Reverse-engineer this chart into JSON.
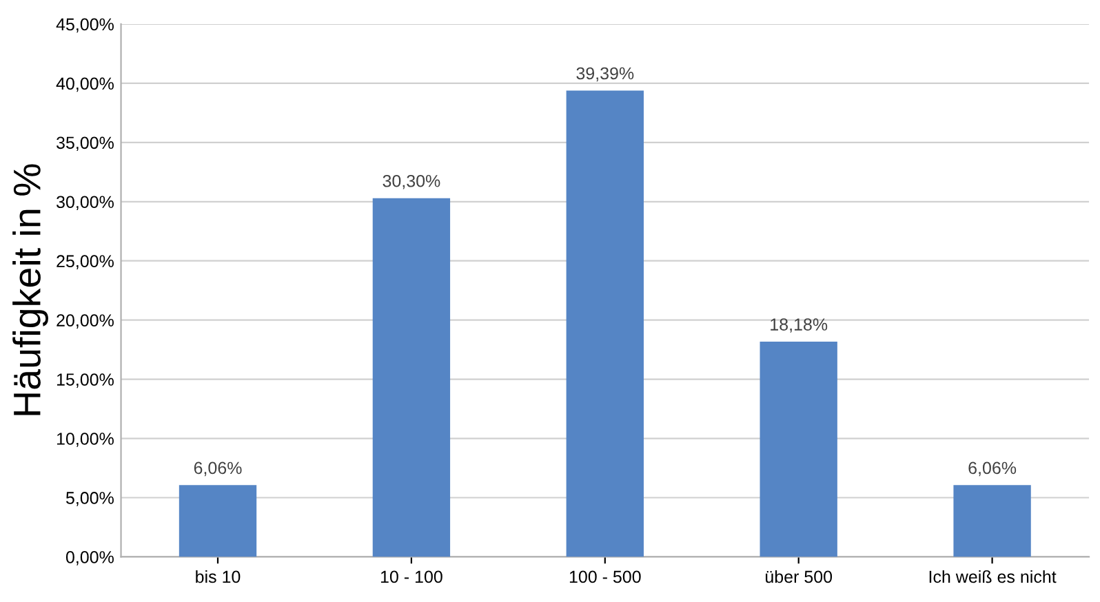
{
  "chart_data": {
    "type": "bar",
    "ylabel": "Häufigkeit in %",
    "categories": [
      "bis 10",
      "10 - 100",
      "100 - 500",
      "über 500",
      "Ich weiß es nicht"
    ],
    "values": [
      6.06,
      30.3,
      39.39,
      18.18,
      6.06
    ],
    "value_labels": [
      "6,06%",
      "30,30%",
      "39,39%",
      "18,18%",
      "6,06%"
    ],
    "color": "#5585c5",
    "ylim": [
      0,
      45
    ],
    "yticks": [
      {
        "value": 0,
        "label": "0,00%"
      },
      {
        "value": 5,
        "label": "5,00%"
      },
      {
        "value": 10,
        "label": "10,00%"
      },
      {
        "value": 15,
        "label": "15,00%"
      },
      {
        "value": 20,
        "label": "20,00%"
      },
      {
        "value": 25,
        "label": "25,00%"
      },
      {
        "value": 30,
        "label": "30,00%"
      },
      {
        "value": 35,
        "label": "35,00%"
      },
      {
        "value": 40,
        "label": "40,00%"
      },
      {
        "value": 45,
        "label": "45,00%"
      }
    ],
    "grid": "y"
  }
}
